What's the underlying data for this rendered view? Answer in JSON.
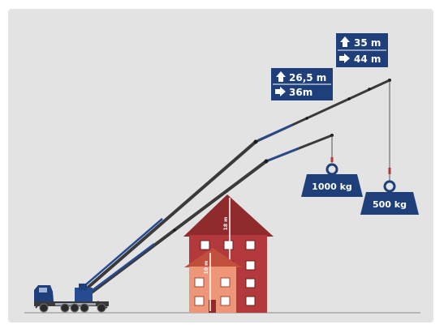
{
  "colors": {
    "background": "#e3e3e3",
    "sign_blue": "#1f3f7a",
    "boom_dark": "#3a3a3a",
    "boom_blue": "#274b92",
    "house_tall": "#b3393c",
    "house_tall_roof": "#8f2a2d",
    "house_small": "#ee9678",
    "house_small_roof": "#c0503c",
    "weight_blue": "#1f3f7a"
  },
  "load_short": {
    "height_label": "26,5 m",
    "reach_label": "36m",
    "weight_label": "1000 kg"
  },
  "load_long": {
    "height_label": "35 m",
    "reach_label": "44 m",
    "weight_label": "500 kg"
  },
  "building_tall": {
    "height_label": "18 m"
  },
  "building_small": {
    "height_label": "10 m"
  }
}
